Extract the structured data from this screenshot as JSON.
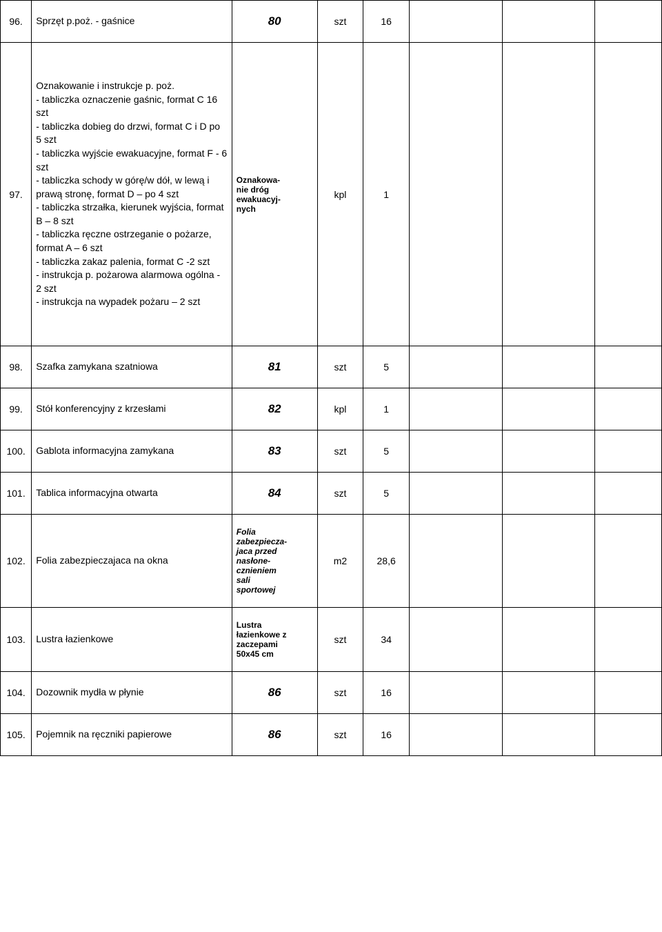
{
  "table": {
    "rows": [
      {
        "num": "96.",
        "desc": "Sprzęt p.poż. - gaśnice",
        "code": "80",
        "code_style": "code-bold-italic",
        "unit": "szt",
        "qty": "16"
      },
      {
        "num": "97.",
        "desc": "Oznakowanie i instrukcje p. poż.\n- tabliczka oznaczenie gaśnic, format C 16 szt\n- tabliczka dobieg do drzwi, format C i D po 5 szt\n- tabliczka wyjście ewakuacyjne, format F - 6 szt\n- tabliczka schody w górę/w dół, w lewą i prawą stronę, format D – po 4 szt\n- tabliczka strzałka, kierunek wyjścia, format B – 8 szt\n- tabliczka ręczne ostrzeganie o pożarze, format A – 6 szt\n- tabliczka zakaz palenia, format C -2 szt\n- instrukcja p. pożarowa alarmowa ogólna - 2 szt\n- instrukcja na wypadek pożaru – 2 szt",
        "code": "Oznakowa-\nnie dróg\newakuacyj-\nnych",
        "code_style": "code-bold",
        "unit": "kpl",
        "qty": "1"
      },
      {
        "num": "98.",
        "desc": "Szafka zamykana szatniowa",
        "code": "81",
        "code_style": "code-bold-italic",
        "unit": "szt",
        "qty": "5"
      },
      {
        "num": "99.",
        "desc": "Stół konferencyjny z krzesłami",
        "code": "82",
        "code_style": "code-bold-italic",
        "unit": "kpl",
        "qty": "1"
      },
      {
        "num": "100.",
        "desc": "Gablota informacyjna zamykana",
        "code": "83",
        "code_style": "code-bold-italic",
        "unit": "szt",
        "qty": "5"
      },
      {
        "num": "101.",
        "desc": "Tablica informacyjna otwarta",
        "code": "84",
        "code_style": "code-bold-italic",
        "unit": "szt",
        "qty": "5"
      },
      {
        "num": "102.",
        "desc": "Folia zabezpieczajaca na okna",
        "code": "Folia\nzabezpiecza-\njaca przed\nnasłone-\ncznieniem\nsali\nsportowej",
        "code_style": "code-bold-italic-small",
        "unit": "m2",
        "qty": "28,6"
      },
      {
        "num": "103.",
        "desc": "Lustra łazienkowe",
        "code": "Lustra\nłazienkowe z\nzaczepami\n50x45 cm",
        "code_style": "code-bold",
        "unit": "szt",
        "qty": "34"
      },
      {
        "num": "104.",
        "desc": "Dozownik mydła w płynie",
        "code": "86",
        "code_style": "code-bold-italic",
        "unit": "szt",
        "qty": "16"
      },
      {
        "num": "105.",
        "desc": "Pojemnik na ręczniki papierowe",
        "code": "86",
        "code_style": "code-bold-italic",
        "unit": "szt",
        "qty": "16"
      }
    ],
    "colors": {
      "border": "#000000",
      "text": "#000000",
      "background": "#ffffff"
    }
  }
}
